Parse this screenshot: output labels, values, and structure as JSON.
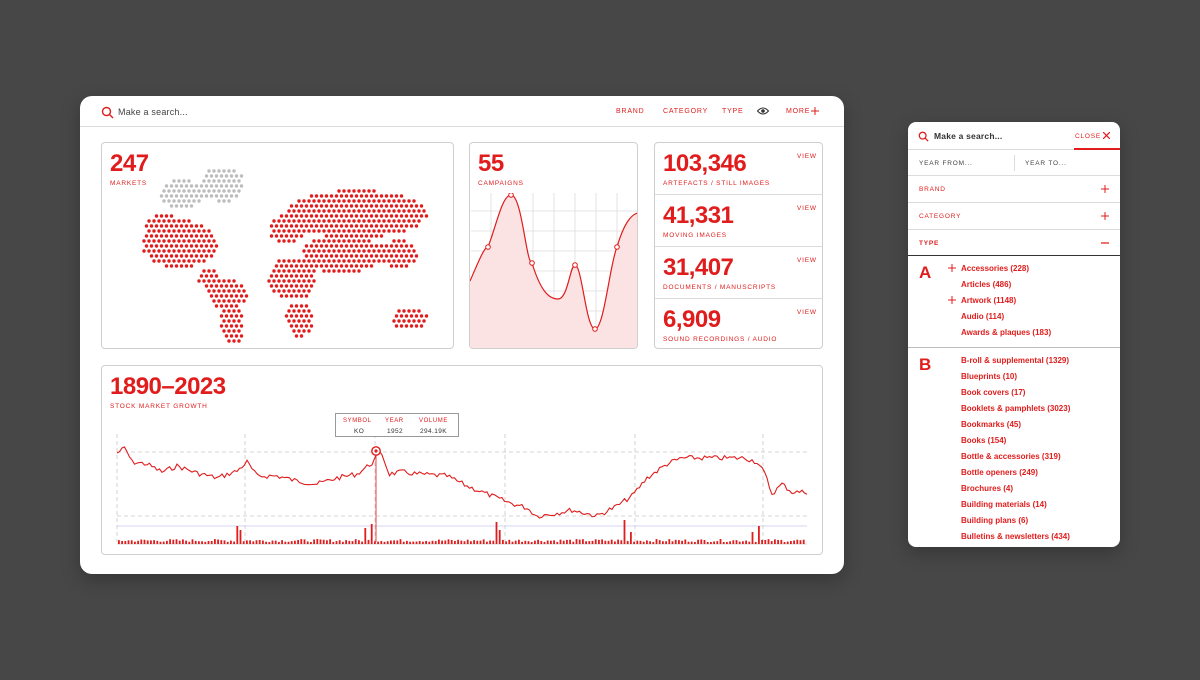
{
  "dashboard": {
    "search_placeholder": "Make a search...",
    "nav": {
      "brand": "BRAND",
      "category": "CATEGORY",
      "type": "TYPE",
      "more": "MORE"
    },
    "markets": {
      "value": "247",
      "label": "MARKETS"
    },
    "campaigns": {
      "value": "55",
      "label": "CAMPAIGNS"
    },
    "stats": [
      {
        "value": "103,346",
        "label": "ARTEFACTS / STILL IMAGES",
        "action": "VIEW"
      },
      {
        "value": "41,331",
        "label": "MOVING IMAGES",
        "action": "VIEW"
      },
      {
        "value": "31,407",
        "label": "DOCUMENTS / MANUSCRIPTS",
        "action": "VIEW"
      },
      {
        "value": "6,909",
        "label": "SOUND RECORDINGS / AUDIO",
        "action": "VIEW"
      }
    ],
    "timeline": {
      "title": "1890–2023",
      "subtitle": "STOCK MARKET GROWTH",
      "tooltip": {
        "symbol_label": "SYMBOL",
        "year_label": "YEAR",
        "volume_label": "VOLUME",
        "symbol": "KO",
        "year": "1952",
        "volume": "294.19K"
      }
    }
  },
  "panel": {
    "search_placeholder": "Make a search...",
    "close_label": "CLOSE",
    "year_from": "YEAR FROM...",
    "year_to": "YEAR TO...",
    "brand": "BRAND",
    "category": "CATEGORY",
    "type": "TYPE",
    "group_a": {
      "letter": "A",
      "items": [
        "Accessories (228)",
        "Articles (486)",
        "Artwork (1148)",
        "Audio (114)",
        "Awards & plaques (183)"
      ]
    },
    "group_b": {
      "letter": "B",
      "items": [
        "B-roll & supplemental (1329)",
        "Blueprints (10)",
        "Book covers (17)",
        "Booklets & pamphlets (3023)",
        "Bookmarks (45)",
        "Books (154)",
        "Bottle & accessories (319)",
        "Bottle openers (249)",
        "Brochures (4)",
        "Building materials (14)",
        "Building plans (6)",
        "Bulletins & newsletters (434)"
      ]
    }
  },
  "colors": {
    "accent": "#e01c1c",
    "background": "#474747",
    "surface": "#ffffff"
  }
}
